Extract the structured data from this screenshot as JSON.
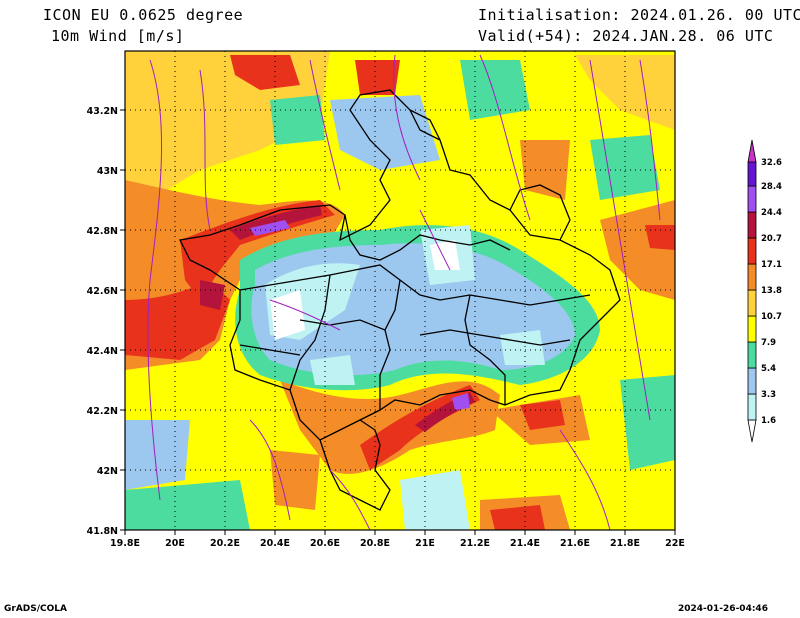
{
  "header": {
    "model": "ICON EU 0.0625 degree",
    "variable": "10m Wind [m/s]",
    "init": "Initialisation: 2024.01.26. 00 UTC",
    "valid": "Valid(+54): 2024.JAN.28. 06 UTC"
  },
  "axes": {
    "x_ticks": [
      "19.8E",
      "20E",
      "20.2E",
      "20.4E",
      "20.6E",
      "20.8E",
      "21E",
      "21.2E",
      "21.4E",
      "21.6E",
      "21.8E",
      "22E"
    ],
    "y_ticks": [
      "43.2N",
      "43N",
      "42.8N",
      "42.6N",
      "42.4N",
      "42.2N",
      "42N",
      "41.8N"
    ],
    "lon_range": [
      19.8,
      22.0
    ],
    "lat_range": [
      41.8,
      43.4
    ]
  },
  "legend": {
    "labels": [
      "1.6",
      "3.3",
      "5.4",
      "7.9",
      "10.7",
      "13.8",
      "17.1",
      "20.7",
      "24.4",
      "28.4",
      "32.6"
    ],
    "colors": [
      "#ffffff",
      "#bff2f2",
      "#9cc7ee",
      "#4ddca0",
      "#ffff00",
      "#ffd23c",
      "#f48c28",
      "#e8321c",
      "#b4143c",
      "#a050f0",
      "#6414d2",
      "#c832c8"
    ]
  },
  "footer": {
    "left": "GrADS/COLA",
    "right": "2024-01-26-04:46"
  }
}
